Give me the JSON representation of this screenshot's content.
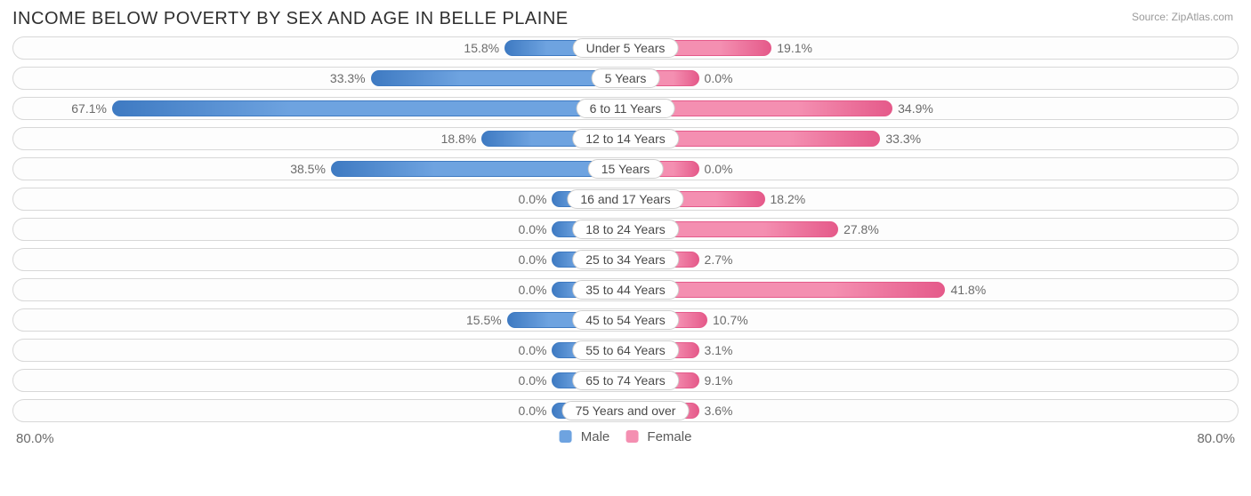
{
  "title": "INCOME BELOW POVERTY BY SEX AND AGE IN BELLE PLAINE",
  "source": "Source: ZipAtlas.com",
  "axis_max": 80.0,
  "axis_label": "80.0%",
  "min_bar_pct": 12.0,
  "colors": {
    "male_fill": "#6ea3e0",
    "male_edge": "#3e7ac2",
    "female_fill": "#f48fb1",
    "female_edge": "#e55a8a",
    "track_border": "#d8d8d8",
    "text": "#6b6b6b",
    "title": "#303030",
    "background": "#ffffff"
  },
  "legend": {
    "male": "Male",
    "female": "Female"
  },
  "rows": [
    {
      "label": "Under 5 Years",
      "male": 15.8,
      "female": 19.1
    },
    {
      "label": "5 Years",
      "male": 33.3,
      "female": 0.0
    },
    {
      "label": "6 to 11 Years",
      "male": 67.1,
      "female": 34.9
    },
    {
      "label": "12 to 14 Years",
      "male": 18.8,
      "female": 33.3
    },
    {
      "label": "15 Years",
      "male": 38.5,
      "female": 0.0
    },
    {
      "label": "16 and 17 Years",
      "male": 0.0,
      "female": 18.2
    },
    {
      "label": "18 to 24 Years",
      "male": 0.0,
      "female": 27.8
    },
    {
      "label": "25 to 34 Years",
      "male": 0.0,
      "female": 2.7
    },
    {
      "label": "35 to 44 Years",
      "male": 0.0,
      "female": 41.8
    },
    {
      "label": "45 to 54 Years",
      "male": 15.5,
      "female": 10.7
    },
    {
      "label": "55 to 64 Years",
      "male": 0.0,
      "female": 3.1
    },
    {
      "label": "65 to 74 Years",
      "male": 0.0,
      "female": 9.1
    },
    {
      "label": "75 Years and over",
      "male": 0.0,
      "female": 3.6
    }
  ]
}
